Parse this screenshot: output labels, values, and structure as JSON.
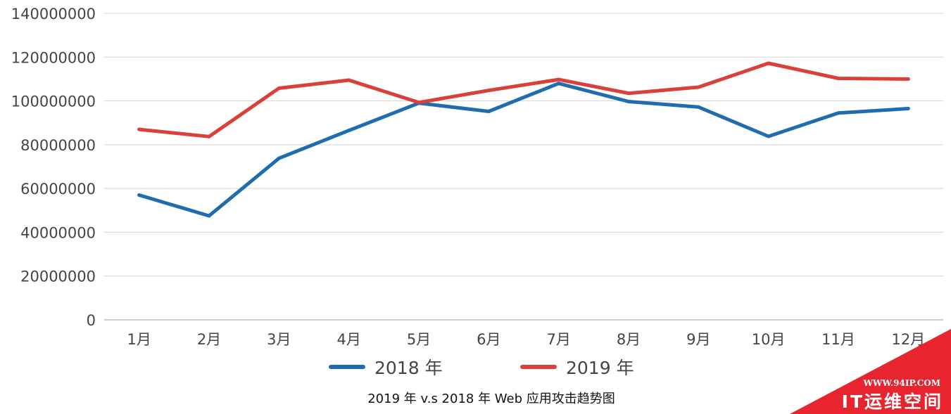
{
  "chart_data": {
    "type": "line",
    "title": "2019 年 v.s 2018 年 Web 应用攻击趋势图",
    "xlabel": "",
    "ylabel": "",
    "categories": [
      "1月",
      "2月",
      "3月",
      "4月",
      "5月",
      "6月",
      "7月",
      "8月",
      "9月",
      "10月",
      "11月",
      "12月"
    ],
    "ylim": [
      0,
      140000000
    ],
    "yticks": [
      "0",
      "20000000",
      "40000000",
      "60000000",
      "80000000",
      "100000000",
      "120000000",
      "140000000"
    ],
    "grid": true,
    "legend_position": "bottom",
    "series": [
      {
        "name": "2018 年",
        "color": "#1F6DAE",
        "values": [
          57000000,
          47500000,
          73800000,
          86500000,
          99000000,
          95200000,
          108000000,
          99700000,
          97200000,
          83800000,
          94500000,
          96500000
        ]
      },
      {
        "name": "2019 年",
        "color": "#D9403A",
        "values": [
          87000000,
          83700000,
          105800000,
          109500000,
          99300000,
          104800000,
          109800000,
          103500000,
          106300000,
          117200000,
          110300000,
          110000000
        ]
      }
    ]
  },
  "watermark": {
    "url": "WWW.94IP.COM",
    "name": "IT运维空间",
    "color": "#E8252F"
  }
}
